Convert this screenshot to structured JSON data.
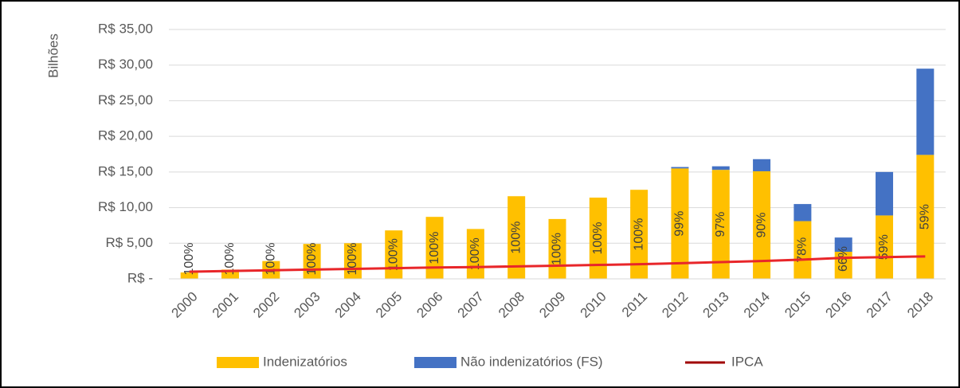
{
  "chart_data": {
    "type": "bar",
    "y_axis_label": "Bilhões",
    "categories": [
      "2000",
      "2001",
      "2002",
      "2003",
      "2004",
      "2005",
      "2006",
      "2007",
      "2008",
      "2009",
      "2010",
      "2011",
      "2012",
      "2013",
      "2014",
      "2015",
      "2016",
      "2017",
      "2018"
    ],
    "series": [
      {
        "name": "Indenizatórios",
        "color": "#ffc000",
        "values": [
          0.9,
          1.3,
          2.5,
          4.9,
          5.0,
          6.8,
          8.7,
          7.0,
          11.6,
          8.4,
          11.4,
          12.5,
          15.5,
          15.3,
          15.1,
          8.1,
          3.8,
          8.9,
          17.4
        ]
      },
      {
        "name": "Não indenizatórios (FS)",
        "color": "#4472c4",
        "values": [
          0,
          0,
          0,
          0,
          0,
          0,
          0,
          0,
          0,
          0,
          0,
          0,
          0.2,
          0.5,
          1.7,
          2.4,
          2.0,
          6.1,
          12.1
        ]
      },
      {
        "name": "IPCA",
        "type": "line",
        "color": "#e8262a",
        "legend_color": "#a00000",
        "values": [
          1.0,
          1.1,
          1.2,
          1.3,
          1.4,
          1.5,
          1.6,
          1.65,
          1.75,
          1.85,
          1.95,
          2.05,
          2.2,
          2.35,
          2.5,
          2.7,
          2.95,
          3.05,
          3.15
        ]
      }
    ],
    "annotations": [
      "100%",
      "100%",
      "100%",
      "100%",
      "100%",
      "100%",
      "100%",
      "100%",
      "100%",
      "100%",
      "100%",
      "100%",
      "99%",
      "97%",
      "90%",
      "78%",
      "66%",
      "59%",
      "59%"
    ],
    "stacked": true,
    "ylim": [
      0,
      35
    ],
    "yticks": [
      {
        "value": 0,
        "label": "R$ -"
      },
      {
        "value": 5,
        "label": "R$ 5,00"
      },
      {
        "value": 10,
        "label": "R$ 10,00"
      },
      {
        "value": 15,
        "label": "R$ 15,00"
      },
      {
        "value": 20,
        "label": "R$ 20,00"
      },
      {
        "value": 25,
        "label": "R$ 25,00"
      },
      {
        "value": 30,
        "label": "R$ 30,00"
      },
      {
        "value": 35,
        "label": "R$ 35,00"
      }
    ],
    "grid": true,
    "legend": "bottom"
  }
}
